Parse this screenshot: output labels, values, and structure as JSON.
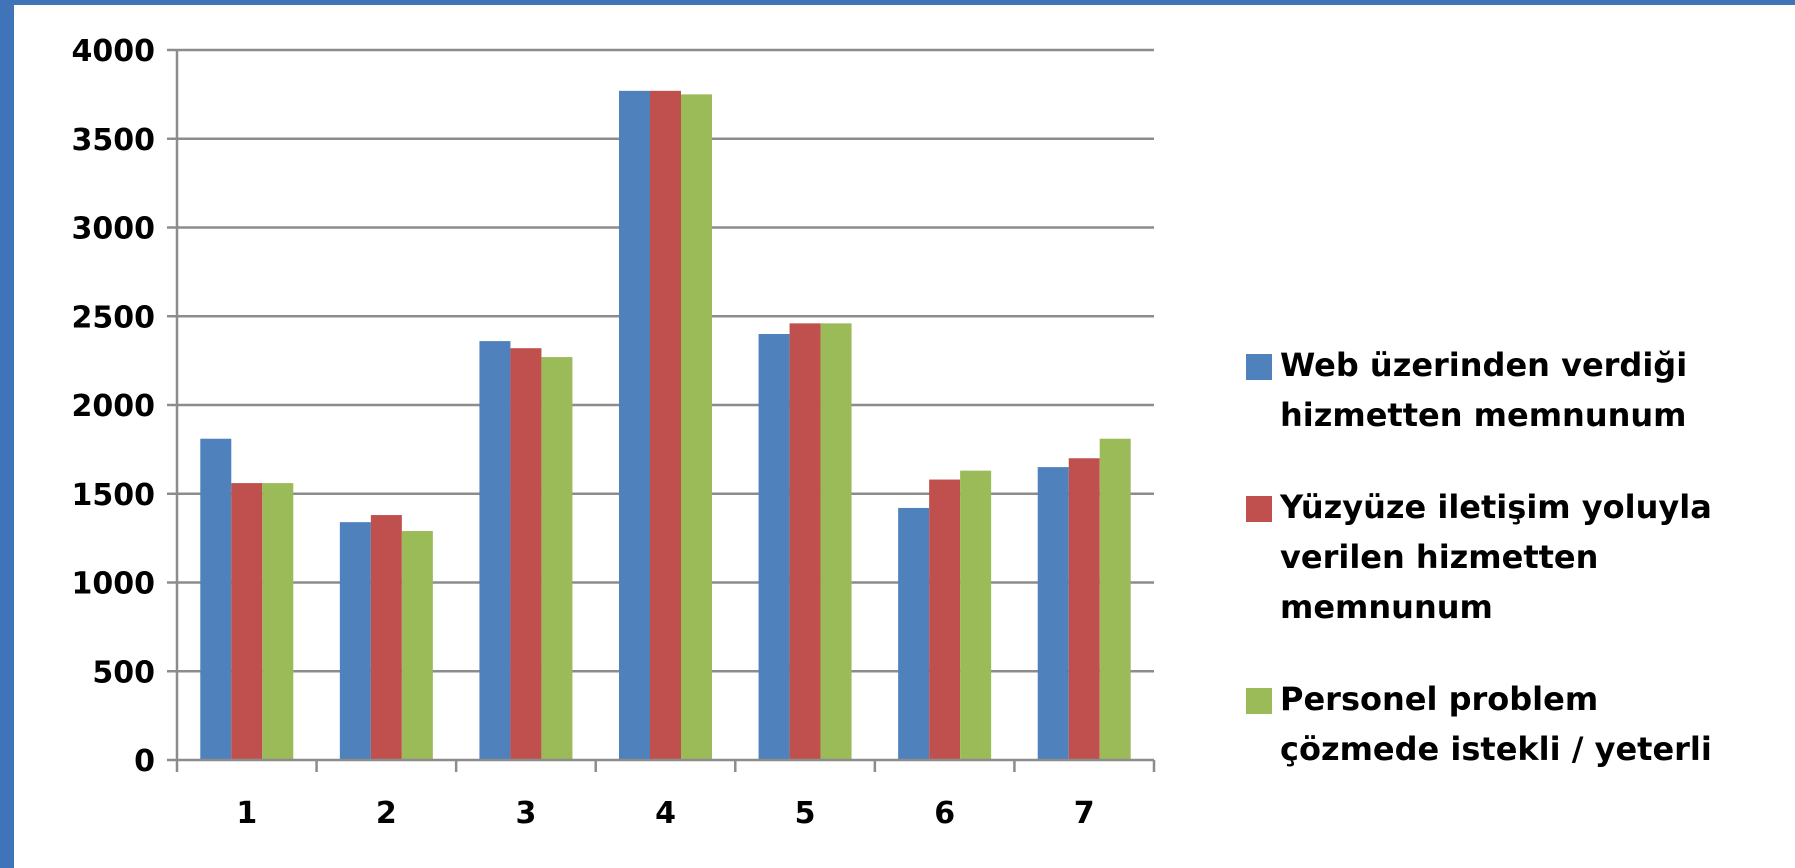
{
  "chart_data": {
    "type": "bar",
    "categories": [
      "1",
      "2",
      "3",
      "4",
      "5",
      "6",
      "7"
    ],
    "series": [
      {
        "name": "Web üzerinden verdiği hizmetten memnunum",
        "color": "#4f81bd",
        "values": [
          1810,
          1340,
          2360,
          3770,
          2400,
          1420,
          1650
        ]
      },
      {
        "name": "Yüzyüze iletişim yoluyla verilen hizmetten memnunum",
        "color": "#c0504d",
        "values": [
          1560,
          1380,
          2320,
          3770,
          2460,
          1580,
          1700
        ]
      },
      {
        "name": "Personel problem çözmede istekli / yeterli",
        "color": "#9bbb59",
        "values": [
          1560,
          1290,
          2270,
          3750,
          2460,
          1630,
          1810
        ]
      }
    ],
    "y_ticks": [
      "0",
      "500",
      "1000",
      "1500",
      "2000",
      "2500",
      "3000",
      "3500",
      "4000"
    ],
    "ylim": [
      0,
      4000
    ],
    "grid": true,
    "legend_position": "right"
  }
}
